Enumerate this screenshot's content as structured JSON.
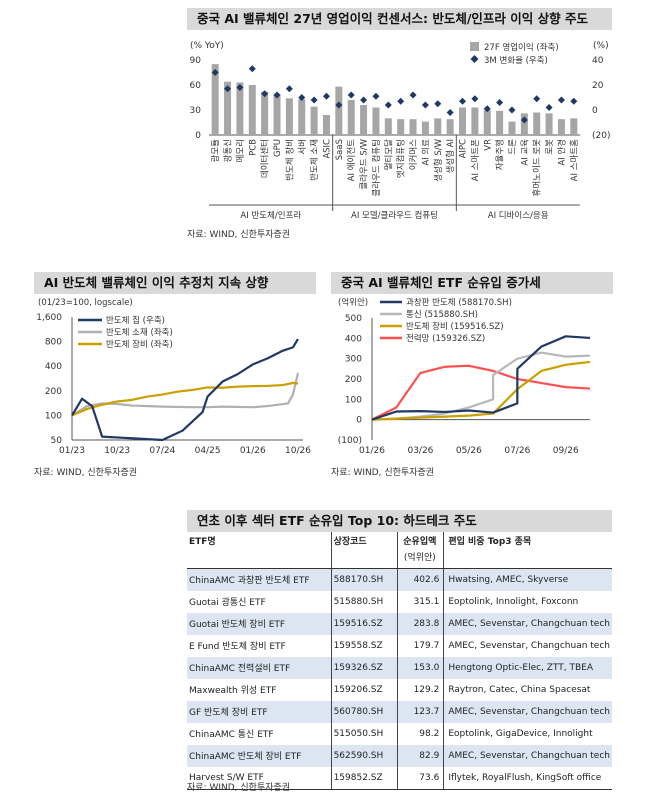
{
  "chart1": {
    "title": "중국 AI 밸류체인 27년 영업이익 컨센서스: 반도체/인프라 이익 상향 주도",
    "source": "자료: WIND, 신한투자증권",
    "left_unit": "(% YoY)",
    "right_unit": "(%)",
    "left_ticks": [
      "0",
      "30",
      "60",
      "90"
    ],
    "right_ticks": [
      "(20)",
      "0",
      "20",
      "40"
    ],
    "legend": [
      "27F 영업이익 (좌축)",
      "3M 변화율 (우축)"
    ],
    "groups": [
      "AI 반도체/인프라",
      "AI 모델/클라우드 컴퓨팅",
      "AI 디바이스/응용"
    ],
    "colors": {
      "bar": "#a6a6a6",
      "dot": "#1f3864"
    }
  },
  "chart2": {
    "title": "AI 반도체 밸류체인 이익 추정치 지속 상향",
    "source": "자료: WIND, 신한투자증권",
    "note": "(01/23=100,  logscale)",
    "y_ticks": [
      "1,600",
      "800",
      "400",
      "200",
      "100",
      "50"
    ],
    "x_ticks": [
      "01/23",
      "10/23",
      "07/24",
      "04/25",
      "01/26",
      "10/26"
    ],
    "legend": [
      "반도체 칩 (우축)",
      "반도체 소재 (좌축)",
      "반도체 장비 (좌축)"
    ],
    "colors": [
      "#203864",
      "#b0b0b0",
      "#c9a000"
    ]
  },
  "chart3": {
    "title": "중국 AI 밸류체인 ETF 순유입 증가세",
    "source": "자료: WIND, 신한투자증권",
    "unit": "(억위안)",
    "y_ticks": [
      "500",
      "400",
      "300",
      "200",
      "100",
      "0",
      "(100)"
    ],
    "x_ticks": [
      "01/26",
      "03/26",
      "05/26",
      "07/26",
      "09/26"
    ],
    "legend": [
      "과창판 반도체 (588170.SH)",
      "통신 (515880.SH)",
      "반도체 장비 (159516.SZ)",
      "전력망 (159326.SZ)"
    ],
    "colors": [
      "#203864",
      "#b8b8b8",
      "#c9a000",
      "#ff5050"
    ]
  },
  "table": {
    "title": "연초 이후 섹터 ETF 순유입 Top 10: 하드테크 주도",
    "source": "자료: WIND, 신한투자증권",
    "headers": [
      "ETF명",
      "상장코드",
      "순유입액",
      "(억위안)",
      "편입 비중 Top3 종목"
    ],
    "rows": [
      [
        "ChinaAMC 과창판 반도체 ETF",
        "588170.SH",
        "402.6",
        "Hwatsing, AMEC, Skyverse"
      ],
      [
        "Guotai 광통신 ETF",
        "515880.SH",
        "315.1",
        "Eoptolink, Innolight, Foxconn"
      ],
      [
        "Guotai 반도체 장비 ETF",
        "159516.SZ",
        "283.8",
        "AMEC, Sevenstar, Changchuan tech"
      ],
      [
        "E Fund 반도체 장비 ETF",
        "159558.SZ",
        "179.7",
        "AMEC, Sevenstar, Changchuan tech"
      ],
      [
        "ChinaAMC 전력설비 ETF",
        "159326.SZ",
        "153.0",
        "Hengtong Optic-Elec, ZTT, TBEA"
      ],
      [
        "Maxwealth 위성 ETF",
        "159206.SZ",
        "129.2",
        "Raytron, Catec, China Spacesat"
      ],
      [
        "GF 반도체 장비 ETF",
        "560780.SH",
        "123.7",
        "AMEC, Sevenstar, Changchuan tech"
      ],
      [
        "ChinaAMC 통신 ETF",
        "515050.SH",
        "98.2",
        "Eoptolink, GigaDevice, Innolight"
      ],
      [
        "ChinaAMC 반도체 장비 ETF",
        "562590.SH",
        "82.9",
        "AMEC, Sevenstar, Changchuan tech"
      ],
      [
        "Harvest S/W ETF",
        "159852.SZ",
        "73.6",
        "Iflytek, RoyalFlush, KingSoft office"
      ]
    ]
  },
  "chart_data": [
    {
      "type": "bar",
      "title": "중국 AI 밸류체인 27년 영업이익 컨센서스: 반도체/인프라 이익 상향 주도",
      "categories": [
        "광모듈",
        "광통신",
        "메모리",
        "PCB",
        "데이터센터",
        "GPU",
        "반도체 장비",
        "서버",
        "반도체 소재",
        "ASIC",
        "SaaS",
        "AI 에이전트",
        "클라우드 S/W",
        "클라우드 컴퓨팅",
        "멀티모달",
        "엣지컴퓨팅",
        "이커머스",
        "AI 의료",
        "생성형 S/W",
        "생성형 AI",
        "AIPC",
        "AI 스마트폰",
        "VR",
        "자율주행",
        "드론",
        "AI 교육",
        "휴머노이드 로봇",
        "로봇",
        "AI 안경",
        "AI 스마트홈"
      ],
      "groups": [
        {
          "name": "AI 반도체/인프라",
          "count": 10
        },
        {
          "name": "AI 모델/클라우드 컴퓨팅",
          "count": 10
        },
        {
          "name": "AI 디바이스/응용",
          "count": 10
        }
      ],
      "series": [
        {
          "name": "27F 영업이익 (좌축)",
          "axis": "left",
          "values": [
            85,
            64,
            63,
            60,
            52,
            49,
            44,
            43,
            34,
            24,
            58,
            42,
            36,
            33,
            20,
            19,
            19,
            16,
            20,
            19,
            33,
            33,
            30,
            29,
            16,
            26,
            27,
            26,
            19,
            20
          ]
        },
        {
          "name": "3M 변화율 (우축)",
          "axis": "right",
          "values": [
            30,
            17,
            18,
            33,
            13,
            12,
            17,
            10,
            8,
            11,
            4,
            12,
            8,
            11,
            4,
            7,
            12,
            4,
            5,
            -2,
            7,
            9,
            1,
            6,
            0,
            -8,
            9,
            2,
            8,
            7
          ]
        }
      ],
      "ylim_left": [
        0,
        90
      ],
      "ylim_right": [
        -20,
        40
      ]
    },
    {
      "type": "line",
      "title": "AI 반도체 밸류체인 이익 추정치 지속 상향",
      "y_scale": "log",
      "ylim": [
        50,
        1600
      ],
      "x_ticks": [
        "01/23",
        "10/23",
        "07/24",
        "04/25",
        "01/26",
        "10/26"
      ],
      "series": [
        {
          "name": "반도체 칩 (우축)",
          "points": [
            [
              "01/23",
              100
            ],
            [
              "03/23",
              160
            ],
            [
              "05/23",
              130
            ],
            [
              "06/23",
              85
            ],
            [
              "07/23",
              55
            ],
            [
              "07/24",
              50
            ],
            [
              "11/24",
              65
            ],
            [
              "03/25",
              110
            ],
            [
              "04/25",
              170
            ],
            [
              "07/25",
              260
            ],
            [
              "10/25",
              320
            ],
            [
              "01/26",
              420
            ],
            [
              "04/26",
              500
            ],
            [
              "07/26",
              620
            ],
            [
              "09/26",
              680
            ],
            [
              "10/26",
              860
            ]
          ]
        },
        {
          "name": "반도체 소재 (좌축)",
          "points": [
            [
              "01/23",
              100
            ],
            [
              "04/23",
              130
            ],
            [
              "07/23",
              140
            ],
            [
              "10/23",
              138
            ],
            [
              "01/24",
              132
            ],
            [
              "07/24",
              128
            ],
            [
              "01/25",
              126
            ],
            [
              "04/25",
              126
            ],
            [
              "07/25",
              128
            ],
            [
              "01/26",
              126
            ],
            [
              "04/26",
              130
            ],
            [
              "08/26",
              140
            ],
            [
              "09/26",
              180
            ],
            [
              "10/26",
              330
            ]
          ]
        },
        {
          "name": "반도체 장비 (좌축)",
          "points": [
            [
              "01/23",
              100
            ],
            [
              "04/23",
              120
            ],
            [
              "07/23",
              135
            ],
            [
              "10/23",
              148
            ],
            [
              "01/24",
              155
            ],
            [
              "04/24",
              170
            ],
            [
              "07/24",
              180
            ],
            [
              "10/24",
              195
            ],
            [
              "01/25",
              205
            ],
            [
              "04/25",
              220
            ],
            [
              "07/25",
              218
            ],
            [
              "10/25",
              225
            ],
            [
              "01/26",
              228
            ],
            [
              "04/26",
              230
            ],
            [
              "07/26",
              235
            ],
            [
              "09/26",
              250
            ],
            [
              "10/26",
              245
            ]
          ]
        }
      ]
    },
    {
      "type": "line",
      "title": "중국 AI 밸류체인 ETF 순유입 증가세",
      "ylim": [
        -100,
        500
      ],
      "x_ticks": [
        "01/26",
        "03/26",
        "05/26",
        "07/26",
        "09/26"
      ],
      "series": [
        {
          "name": "과창판 반도체 (588170.SH)",
          "points": [
            [
              "01/26",
              0
            ],
            [
              "02/26",
              40
            ],
            [
              "03/26",
              42
            ],
            [
              "04/26",
              38
            ],
            [
              "05/26",
              45
            ],
            [
              "06/26",
              35
            ],
            [
              "07/26",
              80
            ],
            [
              "07/26",
              250
            ],
            [
              "08/26",
              360
            ],
            [
              "09/26",
              410
            ],
            [
              "10/26",
              402
            ]
          ]
        },
        {
          "name": "통신 (515880.SH)",
          "points": [
            [
              "01/26",
              0
            ],
            [
              "02/26",
              5
            ],
            [
              "03/26",
              15
            ],
            [
              "04/26",
              30
            ],
            [
              "05/26",
              60
            ],
            [
              "06/26",
              100
            ],
            [
              "06/26",
              220
            ],
            [
              "07/26",
              300
            ],
            [
              "08/26",
              330
            ],
            [
              "09/26",
              310
            ],
            [
              "10/26",
              315
            ]
          ]
        },
        {
          "name": "반도체 장비 (159516.SZ)",
          "points": [
            [
              "01/26",
              0
            ],
            [
              "02/26",
              5
            ],
            [
              "03/26",
              10
            ],
            [
              "04/26",
              15
            ],
            [
              "05/26",
              20
            ],
            [
              "06/26",
              30
            ],
            [
              "07/26",
              150
            ],
            [
              "08/26",
              240
            ],
            [
              "09/26",
              270
            ],
            [
              "10/26",
              284
            ]
          ]
        },
        {
          "name": "전력망 (159326.SZ)",
          "points": [
            [
              "01/26",
              0
            ],
            [
              "02/26",
              60
            ],
            [
              "03/26",
              230
            ],
            [
              "04/26",
              260
            ],
            [
              "05/26",
              265
            ],
            [
              "06/26",
              240
            ],
            [
              "07/26",
              200
            ],
            [
              "08/26",
              180
            ],
            [
              "09/26",
              160
            ],
            [
              "10/26",
              153
            ]
          ]
        }
      ]
    }
  ]
}
